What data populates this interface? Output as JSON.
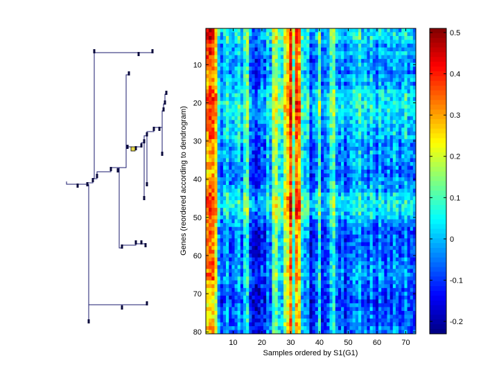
{
  "chart_data": [
    {
      "type": "dendrogram",
      "title": "",
      "orientation": "rotated",
      "line_color": "#1a1a6e",
      "highlight_color": "#e6d84a",
      "leaf_count": 80
    },
    {
      "type": "heatmap",
      "title": "",
      "xlabel": "Samples ordered by S1(G1)",
      "ylabel": "Genes (reordered according to dendrogram)",
      "x_ticks": [
        10,
        20,
        30,
        40,
        50,
        60,
        70
      ],
      "y_ticks": [
        10,
        20,
        30,
        40,
        50,
        60,
        70,
        80
      ],
      "n_rows": 80,
      "n_cols": 73,
      "colormap": "jet",
      "clim": [
        -0.23,
        0.51
      ],
      "colorbar_ticks": [
        -0.2,
        -0.1,
        0,
        0.1,
        0.2,
        0.3,
        0.4,
        0.5
      ],
      "colorbar_tick_labels": [
        "-0.2",
        "-0.1",
        "0",
        "0.1",
        "0.2",
        "0.3",
        "0.4",
        "0.5"
      ],
      "column_profile": [
        0.3,
        0.33,
        0.32,
        0.26,
        0.02,
        -0.06,
        0.0,
        0.05,
        -0.04,
        -0.02,
        0.0,
        0.04,
        -0.03,
        0.08,
        0.12,
        -0.07,
        -0.1,
        -0.12,
        -0.1,
        -0.05,
        -0.08,
        0.03,
        -0.02,
        0.16,
        0.18,
        0.08,
        0.05,
        0.2,
        0.26,
        0.38,
        0.12,
        0.35,
        0.3,
        0.06,
        0.02,
        0.04,
        -0.1,
        -0.06,
        -0.03,
        0.1,
        -0.08,
        -0.05,
        -0.03,
        0.08,
        0.12,
        -0.02,
        -0.05,
        0.0,
        -0.08,
        -0.04,
        -0.02,
        0.02,
        0.0,
        0.05,
        -0.03,
        0.0,
        -0.05,
        0.02,
        -0.03,
        -0.06,
        0.02,
        -0.02,
        -0.05,
        0.0,
        -0.04,
        0.02,
        0.0,
        -0.05,
        -0.02,
        0.03,
        -0.04,
        -0.03,
        -0.05
      ],
      "row_profile": [
        0.04,
        0.05,
        0.06,
        0.04,
        0.0,
        0.0,
        0.02,
        0.0,
        -0.02,
        0.0,
        0.0,
        -0.02,
        0.0,
        0.02,
        0.0,
        0.02,
        0.05,
        0.06,
        0.06,
        0.07,
        0.07,
        0.06,
        0.05,
        0.04,
        0.03,
        0.02,
        0.02,
        0.02,
        0.02,
        0.0,
        -0.02,
        -0.02,
        0.0,
        0.0,
        -0.02,
        -0.02,
        -0.03,
        -0.03,
        -0.03,
        -0.02,
        -0.02,
        0.0,
        0.0,
        0.04,
        0.06,
        0.07,
        0.07,
        0.06,
        0.04,
        0.03,
        0.0,
        -0.02,
        -0.04,
        -0.05,
        -0.05,
        -0.05,
        -0.06,
        -0.06,
        -0.05,
        -0.05,
        -0.04,
        -0.04,
        -0.03,
        -0.03,
        -0.02,
        -0.02,
        -0.04,
        -0.05,
        -0.06,
        -0.06,
        -0.07,
        -0.07,
        -0.06,
        -0.05,
        -0.05,
        -0.05,
        -0.05,
        -0.04,
        -0.04,
        -0.04
      ]
    }
  ]
}
